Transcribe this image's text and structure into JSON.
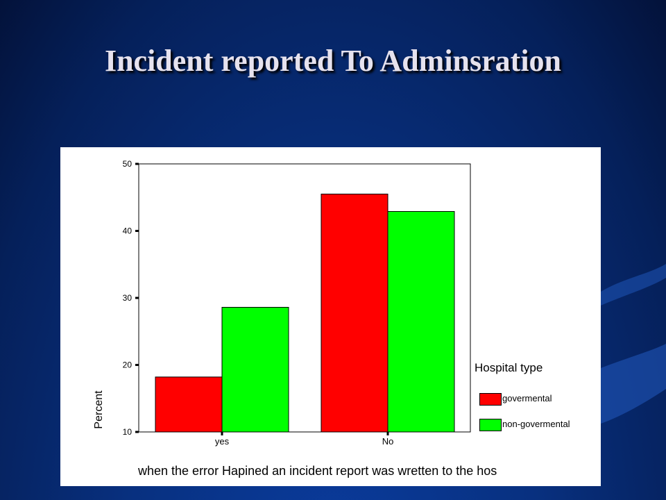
{
  "slide": {
    "title": "Incident reported To Adminsration",
    "background_color": "#08307f"
  },
  "chart_data": {
    "type": "bar",
    "categories": [
      "yes",
      "No"
    ],
    "series": [
      {
        "name": "govermental",
        "color": "#ff0000",
        "values": [
          18.2,
          45.5
        ]
      },
      {
        "name": "non-govermental",
        "color": "#00ff00",
        "values": [
          28.6,
          42.9
        ]
      }
    ],
    "xlabel": "when the error Hapined an incident report was wretten to the hos",
    "ylabel": "Percent",
    "ylim": [
      10,
      50
    ],
    "yticks": [
      10,
      20,
      30,
      40,
      50
    ],
    "legend": {
      "title": "Hospital type",
      "placement": "right"
    },
    "grid": false
  }
}
